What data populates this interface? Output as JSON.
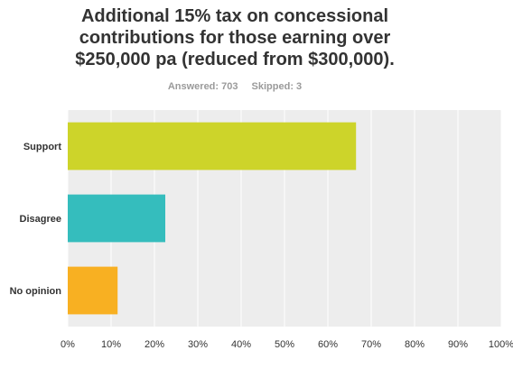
{
  "title_lines": [
    "Additional 15% tax on concessional",
    "contributions for those earning over",
    "$250,000 pa (reduced from $300,000)."
  ],
  "summary": {
    "answered": "Answered: 703",
    "skipped": "Skipped: 3"
  },
  "chart_data": {
    "type": "bar",
    "orientation": "horizontal",
    "categories": [
      "Support",
      "Disagree",
      "No opinion"
    ],
    "values": [
      66.5,
      22.5,
      11.5
    ],
    "colors": [
      "#cdd42a",
      "#35bdbd",
      "#f8b022"
    ],
    "xlim": [
      0,
      100
    ],
    "x_ticks": [
      "0%",
      "10%",
      "20%",
      "30%",
      "40%",
      "50%",
      "60%",
      "70%",
      "80%",
      "90%",
      "100%"
    ],
    "grid": true,
    "plot_background": "#ededed"
  }
}
